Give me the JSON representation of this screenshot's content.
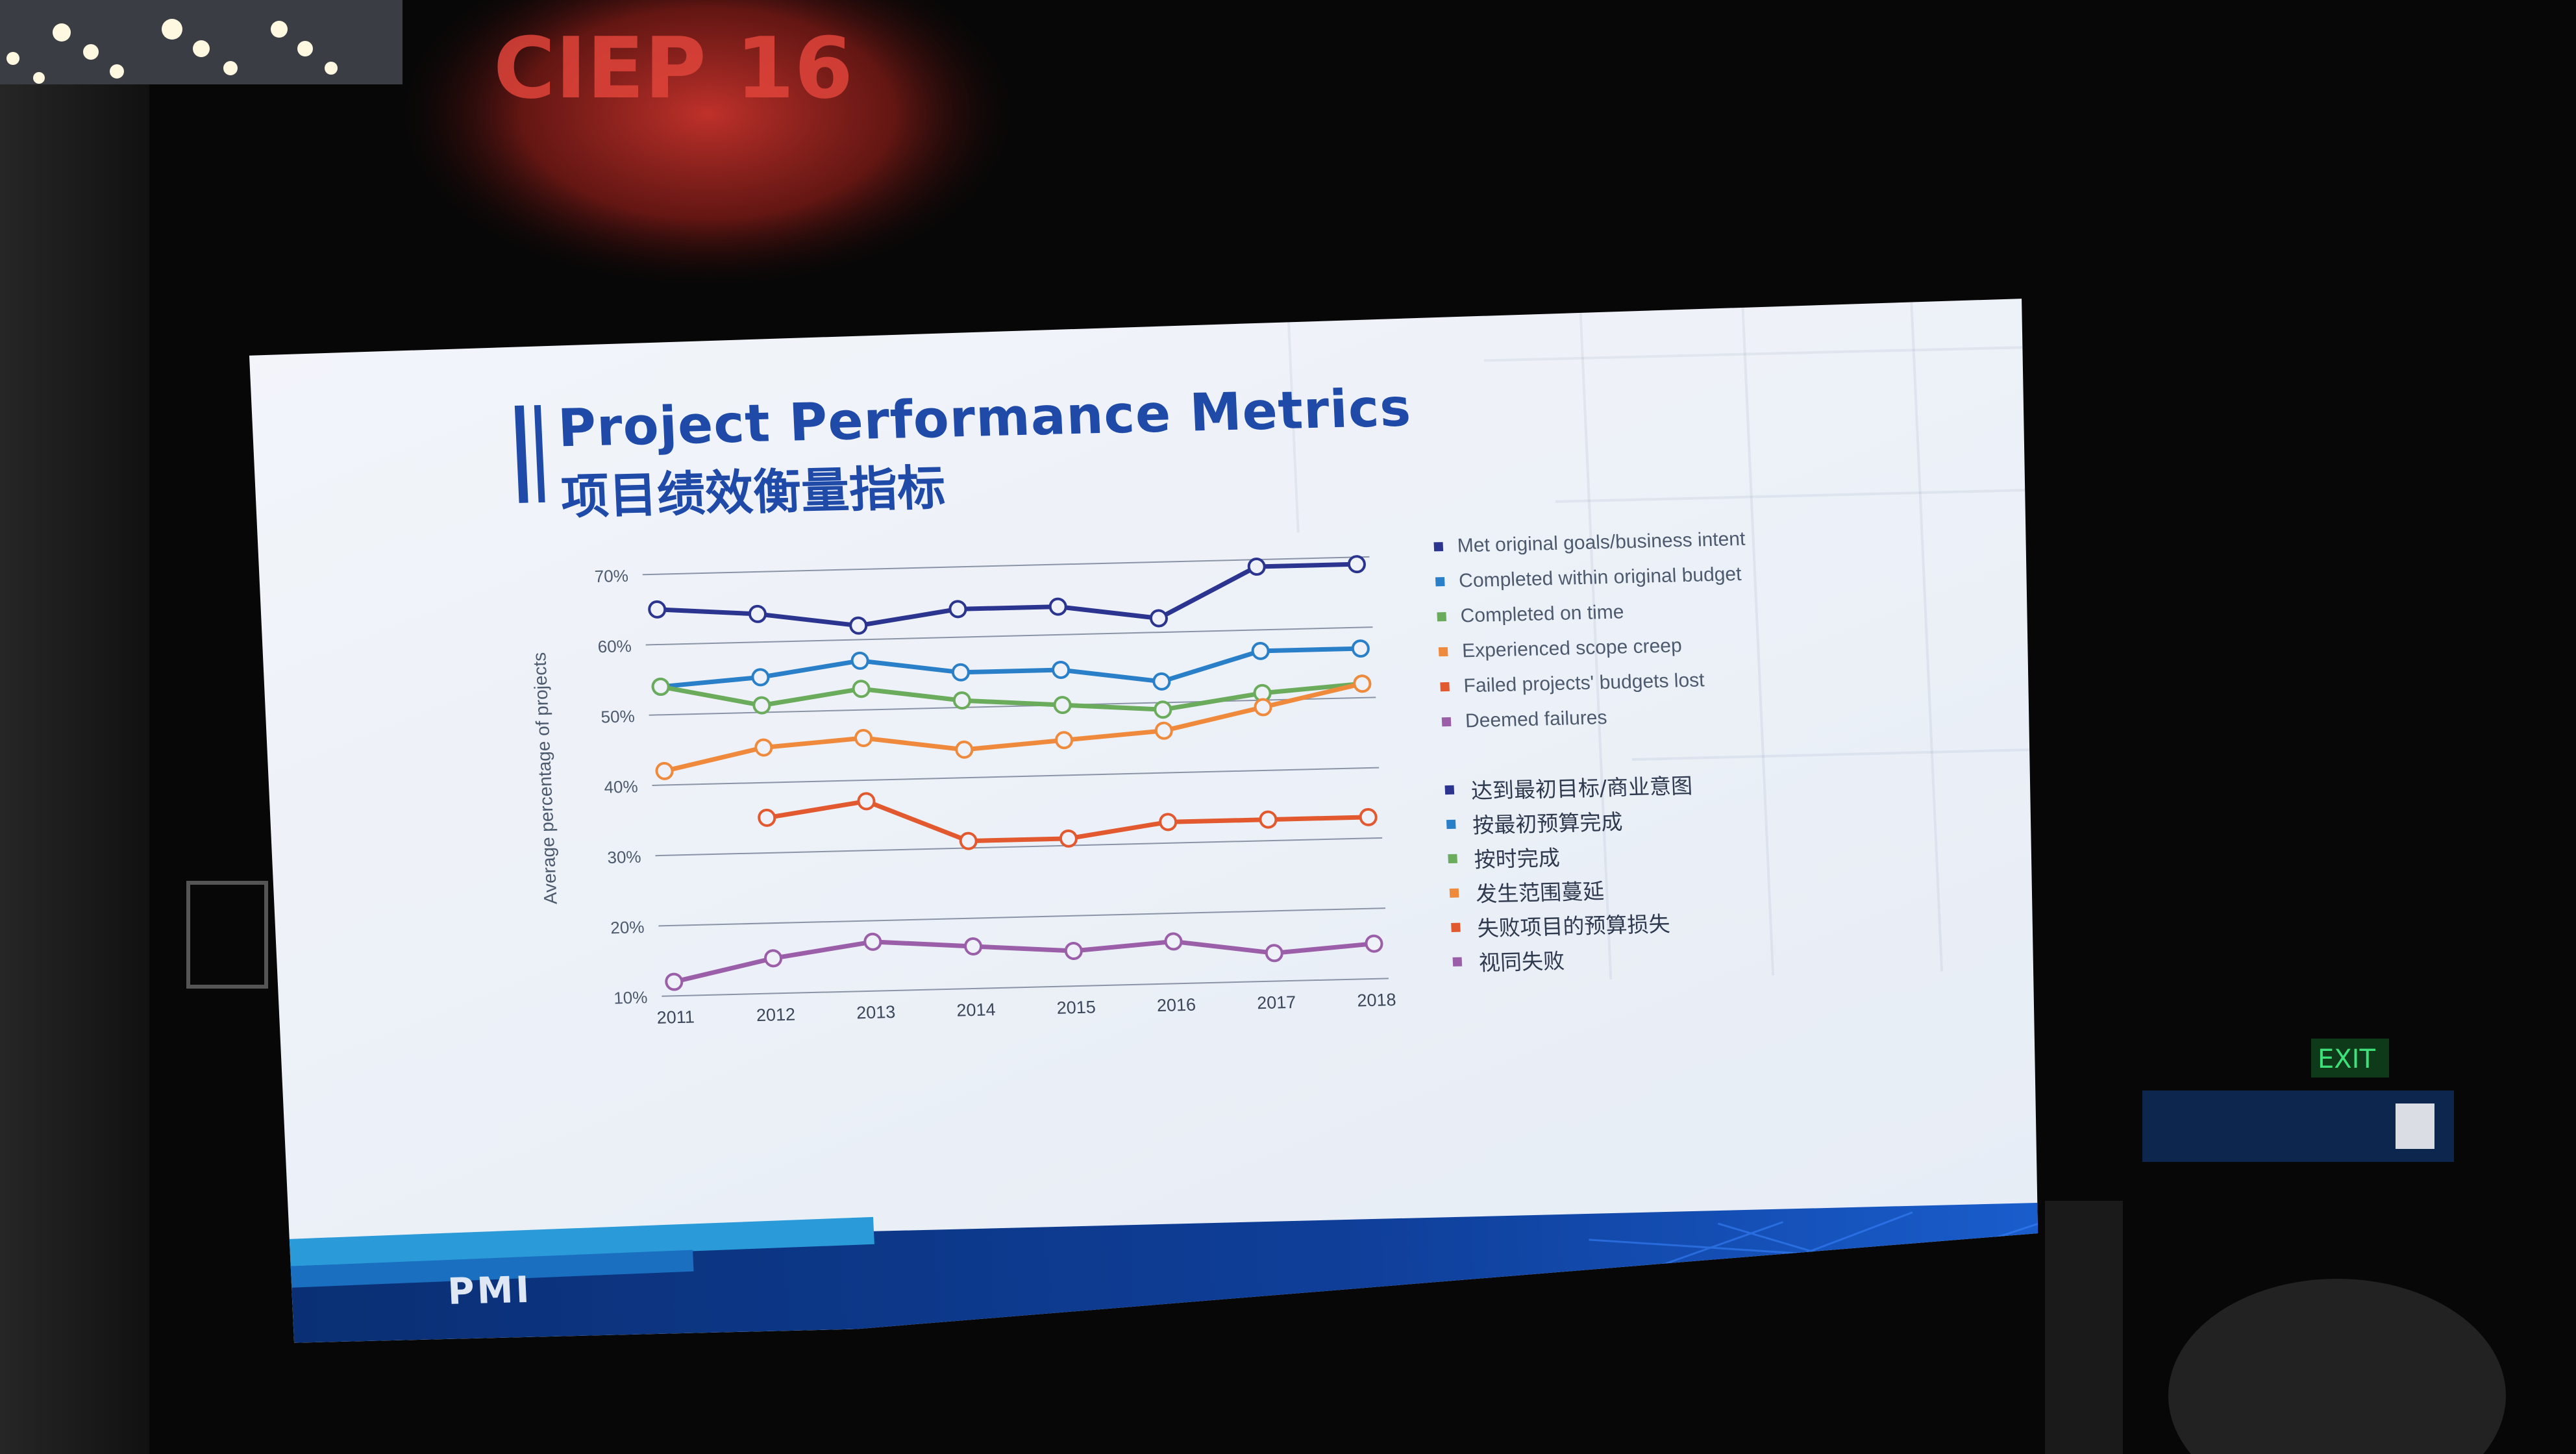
{
  "slide": {
    "title_en": "Project Performance Metrics",
    "title_zh": "项目绩效衡量指标",
    "logo_text": "PMI"
  },
  "venue": {
    "banner_text": "CIEP 16",
    "exit_sign": "EXIT"
  },
  "colors": {
    "title": "#1f4aa8",
    "footer_dark": "#0d3a8a",
    "footer_light": "#2a9ad8"
  },
  "chart_data": {
    "type": "line",
    "ylabel": "Average percentage of projects",
    "xlabel": "",
    "x": [
      "2011",
      "2012",
      "2013",
      "2014",
      "2015",
      "2016",
      "2017",
      "2018"
    ],
    "ylim": [
      10,
      70
    ],
    "yticks": [
      "70%",
      "60%",
      "50%",
      "40%",
      "30%",
      "20%",
      "10%"
    ],
    "grid": true,
    "legend_position": "right",
    "series": [
      {
        "name": "Met original goals/business intent",
        "name_zh": "达到最初目标/商业意图",
        "color": "#2b3590",
        "values": [
          65,
          64,
          62,
          64,
          64,
          62,
          69,
          69
        ]
      },
      {
        "name": "Completed within original budget",
        "name_zh": "按最初预算完成",
        "color": "#2a7fc9",
        "values": [
          54,
          55,
          57,
          55,
          55,
          53,
          57,
          57
        ]
      },
      {
        "name": "Completed on time",
        "name_zh": "按时完成",
        "color": "#6aab5c",
        "values": [
          54,
          51,
          53,
          51,
          50,
          49,
          51,
          52
        ]
      },
      {
        "name": "Experienced scope creep",
        "name_zh": "发生范围蔓延",
        "color": "#ef8a3c",
        "values": [
          42,
          45,
          46,
          44,
          45,
          46,
          49,
          52
        ]
      },
      {
        "name": "Failed projects' budgets lost",
        "name_zh": "失败项目的预算损失",
        "color": "#e2582f",
        "values": [
          null,
          35,
          37,
          31,
          31,
          33,
          33,
          33
        ]
      },
      {
        "name": "Deemed failures",
        "name_zh": "视同失败",
        "color": "#9a5fa8",
        "values": [
          12,
          15,
          17,
          16,
          15,
          16,
          14,
          15
        ]
      }
    ]
  }
}
